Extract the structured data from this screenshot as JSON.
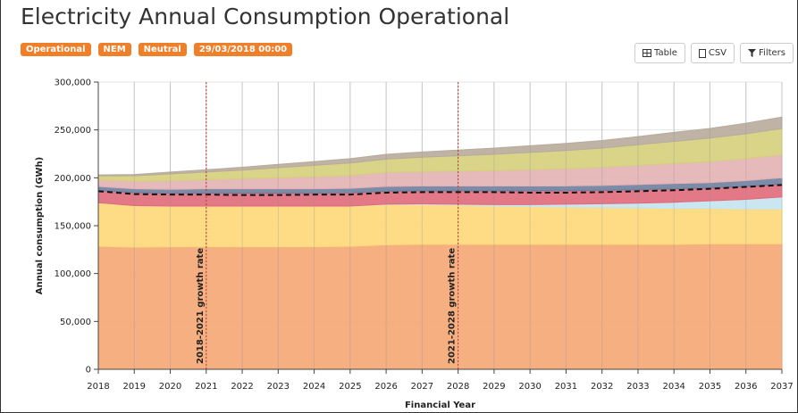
{
  "header": {
    "title": "Electricity Annual Consumption Operational",
    "badges": [
      "Operational",
      "NEM",
      "Neutral",
      "29/03/2018 00:00"
    ],
    "buttons": [
      "Table",
      "CSV",
      "Filters"
    ]
  },
  "chart_data": {
    "type": "stacked_area",
    "y_label": "Annual consumption (GWh)",
    "x_label": "Financial Year",
    "x": [
      2018,
      2019,
      2020,
      2021,
      2022,
      2023,
      2024,
      2025,
      2026,
      2027,
      2028,
      2029,
      2030,
      2031,
      2032,
      2033,
      2034,
      2035,
      2036,
      2037
    ],
    "xlim": [
      2018,
      2037
    ],
    "xticks": [
      2018,
      2019,
      2020,
      2021,
      2022,
      2023,
      2024,
      2025,
      2026,
      2027,
      2028,
      2029,
      2030,
      2031,
      2032,
      2033,
      2034,
      2035,
      2036,
      2037
    ],
    "ylim": [
      0,
      300000
    ],
    "yticks": [
      0,
      {
        "value": 50000,
        "label": "50,000"
      },
      {
        "value": 100000,
        "label": "100,000"
      },
      {
        "value": 150000,
        "label": "150,000"
      },
      {
        "value": 200000,
        "label": "200,000"
      },
      {
        "value": 250000,
        "label": "250,000"
      },
      {
        "value": 300000,
        "label": "300,000"
      }
    ],
    "grid": true,
    "series": [
      {
        "color": "#f5a673",
        "values": [
          128500,
          127500,
          128000,
          128000,
          128000,
          128000,
          128000,
          128500,
          130000,
          130500,
          130500,
          130500,
          130500,
          130500,
          130500,
          130500,
          130500,
          131000,
          131000,
          131000
        ]
      },
      {
        "color": "#fdd878",
        "values": [
          45500,
          43500,
          42500,
          42500,
          42500,
          42500,
          42500,
          42000,
          42000,
          41500,
          41000,
          40000,
          39500,
          39000,
          38500,
          38000,
          37500,
          37000,
          36500,
          36500
        ]
      },
      {
        "color": "#c4e4ef",
        "values": [
          0,
          0,
          0,
          0,
          0,
          0,
          0,
          0,
          500,
          800,
          1000,
          1500,
          2000,
          3000,
          4000,
          5000,
          6500,
          8000,
          10000,
          12500
        ]
      },
      {
        "color": "#e0697a",
        "values": [
          13000,
          13500,
          13500,
          13500,
          13500,
          13500,
          13500,
          14000,
          13500,
          13700,
          14000,
          14500,
          14500,
          14000,
          14000,
          14000,
          14000,
          13500,
          13500,
          13500
        ]
      },
      {
        "color": "#6e7f9e",
        "values": [
          4000,
          4000,
          4000,
          4500,
          4500,
          4500,
          4500,
          4500,
          5000,
          5000,
          5000,
          5000,
          5000,
          5000,
          5000,
          5500,
          5500,
          5500,
          6000,
          6500
        ]
      },
      {
        "color": "#e3b1b4",
        "values": [
          7000,
          8000,
          9000,
          9500,
          10500,
          11500,
          12500,
          13500,
          14500,
          15000,
          15500,
          16000,
          17000,
          18000,
          19000,
          20000,
          21000,
          22000,
          23000,
          24000
        ]
      },
      {
        "color": "#d6cf7c",
        "values": [
          4000,
          5500,
          7000,
          8000,
          9000,
          10500,
          12000,
          13000,
          14000,
          15000,
          16000,
          17000,
          18000,
          19000,
          20000,
          21500,
          23000,
          24500,
          26000,
          27500
        ]
      },
      {
        "color": "#b8ab9c",
        "values": [
          1000,
          1500,
          2000,
          2500,
          3000,
          3500,
          4000,
          4500,
          5000,
          5500,
          6000,
          6500,
          7000,
          7500,
          8000,
          8500,
          9500,
          10000,
          11000,
          12000
        ]
      }
    ],
    "line": {
      "color": "#111111",
      "dashed": true,
      "values": [
        186000,
        183000,
        182500,
        182500,
        182000,
        182000,
        182500,
        182500,
        184500,
        185000,
        185000,
        185000,
        184500,
        184500,
        185000,
        186000,
        187000,
        188500,
        190500,
        192500
      ]
    },
    "annotations": [
      {
        "x": 2021,
        "label": "2018-2021 growth rate",
        "color": "#c0392b"
      },
      {
        "x": 2028,
        "label": "2021-2028 growth rate",
        "color": "#c0392b"
      }
    ]
  }
}
